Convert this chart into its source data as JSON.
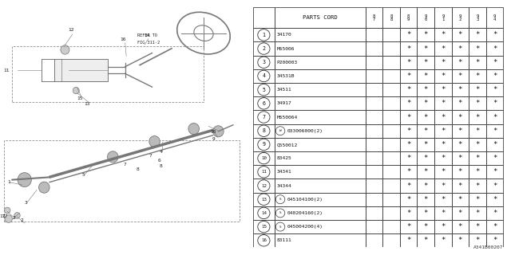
{
  "bg_color": "#ffffff",
  "rows": [
    [
      "1",
      "34170"
    ],
    [
      "2",
      "M55006"
    ],
    [
      "3",
      "P200003"
    ],
    [
      "4",
      "34531B"
    ],
    [
      "5",
      "34511"
    ],
    [
      "6",
      "34917"
    ],
    [
      "7",
      "M550064"
    ],
    [
      "8",
      "W033006000(2)"
    ],
    [
      "9",
      "Q550012"
    ],
    [
      "10",
      "83425"
    ],
    [
      "11",
      "34341"
    ],
    [
      "12",
      "34344"
    ],
    [
      "13",
      "S045104100(2)"
    ],
    [
      "14",
      "S040204160(2)"
    ],
    [
      "15",
      "S045004200(4)"
    ],
    [
      "16",
      "83111"
    ]
  ],
  "year_headers": [
    "8\n7",
    "8\n8",
    "8\n9",
    "9\n0",
    "9\n1",
    "9\n2",
    "9\n3",
    "9\n4"
  ],
  "special_w": [
    "8"
  ],
  "special_s": [
    "13",
    "14",
    "15"
  ],
  "watermark": "A341B00207",
  "lc": "#777777",
  "tc": "#222222"
}
